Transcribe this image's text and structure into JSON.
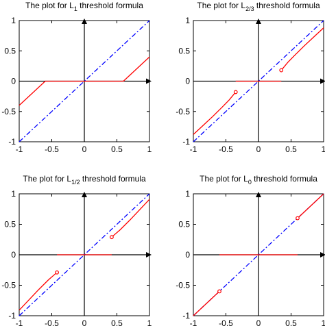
{
  "chart_data": [
    {
      "type": "line",
      "title": {
        "prefix": "The plot for L",
        "sub": "1",
        "suffix": " threshold formula"
      },
      "xlim": [
        -1,
        1
      ],
      "ylim": [
        -1,
        1
      ],
      "xticks": [
        -1,
        -0.5,
        0,
        0.5,
        1
      ],
      "yticks": [
        -1,
        -0.5,
        0,
        0.5,
        1
      ],
      "xtick_labels": [
        "-1",
        "-0.5",
        "0",
        "0.5",
        "1"
      ],
      "ytick_labels": [
        "-1",
        "-0.5",
        "0",
        "0.5",
        "1"
      ],
      "series": [
        {
          "style": "dash-dot",
          "color": "#0000ff",
          "x": [
            -1,
            1
          ],
          "y": [
            -1,
            1
          ]
        },
        {
          "style": "solid",
          "color": "#ff0000",
          "x": [
            -1,
            -0.6
          ],
          "y": [
            -0.4,
            0
          ]
        },
        {
          "style": "solid",
          "color": "#ff0000",
          "x": [
            -0.6,
            0.6
          ],
          "y": [
            0,
            0
          ]
        },
        {
          "style": "solid",
          "color": "#ff0000",
          "x": [
            0.6,
            1
          ],
          "y": [
            0,
            0.4
          ]
        }
      ],
      "points": []
    },
    {
      "type": "line",
      "title": {
        "prefix": "The plot for L",
        "sub": "2/3",
        "suffix": " threshold formula"
      },
      "xlim": [
        -1,
        1
      ],
      "ylim": [
        -1,
        1
      ],
      "xticks": [
        -1,
        -0.5,
        0,
        0.5,
        1
      ],
      "yticks": [
        -1,
        -0.5,
        0,
        0.5,
        1
      ],
      "xtick_labels": [
        "-1",
        "-0.5",
        "0",
        "0.5",
        "1"
      ],
      "ytick_labels": [
        "-1",
        "-0.5",
        "0",
        "0.5",
        "1"
      ],
      "series": [
        {
          "style": "dash-dot",
          "color": "#0000ff",
          "x": [
            -1,
            1
          ],
          "y": [
            -1,
            1
          ]
        },
        {
          "style": "solid",
          "color": "#ff0000",
          "x": [
            -1,
            -0.85,
            -0.7,
            -0.55,
            -0.45,
            -0.35
          ],
          "y": [
            -0.88,
            -0.73,
            -0.58,
            -0.42,
            -0.31,
            -0.18
          ]
        },
        {
          "style": "solid",
          "color": "#ff0000",
          "x": [
            -0.35,
            0.35
          ],
          "y": [
            0,
            0
          ]
        },
        {
          "style": "solid",
          "color": "#ff0000",
          "x": [
            0.35,
            0.45,
            0.55,
            0.7,
            0.85,
            1
          ],
          "y": [
            0.18,
            0.31,
            0.42,
            0.58,
            0.73,
            0.88
          ]
        }
      ],
      "points": [
        {
          "x": -0.35,
          "y": -0.18,
          "color": "#ff0000"
        },
        {
          "x": 0.35,
          "y": 0.18,
          "color": "#ff0000"
        }
      ]
    },
    {
      "type": "line",
      "title": {
        "prefix": "The plot for L",
        "sub": "1/2",
        "suffix": " threshold formula"
      },
      "xlim": [
        -1,
        1
      ],
      "ylim": [
        -1,
        1
      ],
      "xticks": [
        -1,
        -0.5,
        0,
        0.5,
        1
      ],
      "yticks": [
        -1,
        -0.5,
        0,
        0.5,
        1
      ],
      "xtick_labels": [
        "-1",
        "-0.5",
        "0",
        "0.5",
        "1"
      ],
      "ytick_labels": [
        "-1",
        "-0.5",
        "0",
        "0.5",
        "1"
      ],
      "series": [
        {
          "style": "dash-dot",
          "color": "#0000ff",
          "x": [
            -1,
            1
          ],
          "y": [
            -1,
            1
          ]
        },
        {
          "style": "solid",
          "color": "#ff0000",
          "x": [
            -1,
            -0.85,
            -0.7,
            -0.55,
            -0.42
          ],
          "y": [
            -0.91,
            -0.74,
            -0.57,
            -0.41,
            -0.29
          ]
        },
        {
          "style": "solid",
          "color": "#ff0000",
          "x": [
            -0.42,
            0.42
          ],
          "y": [
            0,
            0
          ]
        },
        {
          "style": "solid",
          "color": "#ff0000",
          "x": [
            0.42,
            0.55,
            0.7,
            0.85,
            1
          ],
          "y": [
            0.29,
            0.41,
            0.57,
            0.74,
            0.91
          ]
        }
      ],
      "points": [
        {
          "x": -0.42,
          "y": -0.29,
          "color": "#ff0000"
        },
        {
          "x": 0.42,
          "y": 0.29,
          "color": "#ff0000"
        }
      ]
    },
    {
      "type": "line",
      "title": {
        "prefix": "The plot for L",
        "sub": "0",
        "suffix": " threshold formula"
      },
      "xlim": [
        -1,
        1
      ],
      "ylim": [
        -1,
        1
      ],
      "xticks": [
        -1,
        -0.5,
        0,
        0.5,
        1
      ],
      "yticks": [
        -1,
        -0.5,
        0,
        0.5,
        1
      ],
      "xtick_labels": [
        "-1",
        "-0.5",
        "0",
        "0.5",
        "1"
      ],
      "ytick_labels": [
        "-1",
        "-0.5",
        "0",
        "0.5",
        "1"
      ],
      "series": [
        {
          "style": "dash-dot",
          "color": "#0000ff",
          "x": [
            -1,
            1
          ],
          "y": [
            -1,
            1
          ]
        },
        {
          "style": "solid",
          "color": "#ff0000",
          "x": [
            -1,
            -0.6
          ],
          "y": [
            -1,
            -0.6
          ]
        },
        {
          "style": "solid",
          "color": "#ff0000",
          "x": [
            -0.6,
            0.6
          ],
          "y": [
            0,
            0
          ]
        },
        {
          "style": "solid",
          "color": "#ff0000",
          "x": [
            0.6,
            1
          ],
          "y": [
            0.6,
            1
          ]
        }
      ],
      "points": [
        {
          "x": -0.6,
          "y": -0.6,
          "color": "#ff0000"
        },
        {
          "x": 0.6,
          "y": 0.6,
          "color": "#ff0000"
        }
      ]
    }
  ]
}
